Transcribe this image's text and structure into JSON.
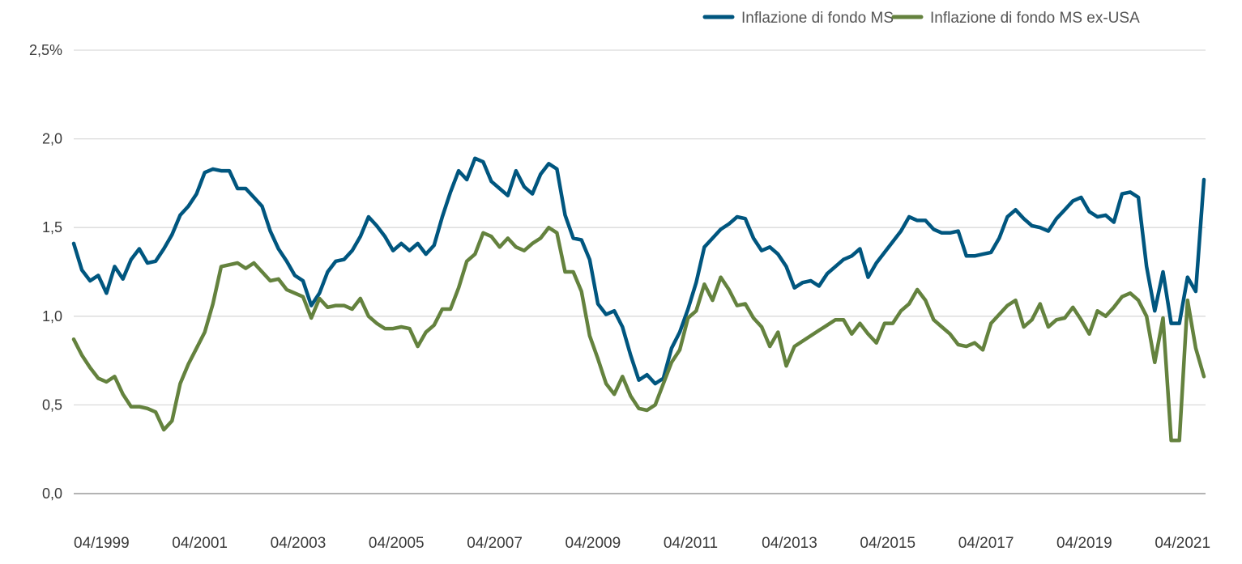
{
  "chart_data": {
    "type": "line",
    "title": "",
    "xlabel": "",
    "ylabel": "",
    "ylim": [
      0,
      2.5
    ],
    "y_ticks": [
      "0,0",
      "0,5",
      "1,0",
      "1,5",
      "2,0",
      "2,5%"
    ],
    "y_tick_values": [
      0,
      0.5,
      1.0,
      1.5,
      2.0,
      2.5
    ],
    "x_ticks": [
      "04/1999",
      "04/2001",
      "04/2003",
      "04/2005",
      "04/2007",
      "04/2009",
      "04/2011",
      "04/2013",
      "04/2015",
      "04/2017",
      "04/2019",
      "04/2021"
    ],
    "x_tick_values": [
      "1999-04",
      "2001-04",
      "2003-04",
      "2005-04",
      "2007-04",
      "2009-04",
      "2011-04",
      "2013-04",
      "2015-04",
      "2017-04",
      "2019-04",
      "2021-04"
    ],
    "grid": "horizontal",
    "legend_position": "top-right",
    "x": [
      "1999-04",
      "1999-06",
      "1999-08",
      "1999-10",
      "1999-12",
      "2000-02",
      "2000-04",
      "2000-06",
      "2000-08",
      "2000-10",
      "2000-12",
      "2001-02",
      "2001-04",
      "2001-06",
      "2001-08",
      "2001-10",
      "2001-12",
      "2002-02",
      "2002-04",
      "2002-06",
      "2002-08",
      "2002-10",
      "2002-12",
      "2003-02",
      "2003-04",
      "2003-06",
      "2003-08",
      "2003-10",
      "2003-12",
      "2004-02",
      "2004-04",
      "2004-06",
      "2004-08",
      "2004-10",
      "2004-12",
      "2005-02",
      "2005-04",
      "2005-06",
      "2005-08",
      "2005-10",
      "2005-12",
      "2006-02",
      "2006-04",
      "2006-06",
      "2006-08",
      "2006-10",
      "2006-12",
      "2007-02",
      "2007-04",
      "2007-06",
      "2007-08",
      "2007-10",
      "2007-12",
      "2008-02",
      "2008-04",
      "2008-06",
      "2008-08",
      "2008-10",
      "2008-12",
      "2009-02",
      "2009-04",
      "2009-06",
      "2009-08",
      "2009-10",
      "2009-12",
      "2010-02",
      "2010-04",
      "2010-06",
      "2010-08",
      "2010-10",
      "2010-12",
      "2011-02",
      "2011-04",
      "2011-06",
      "2011-08",
      "2011-10",
      "2011-12",
      "2012-02",
      "2012-04",
      "2012-06",
      "2012-08",
      "2012-10",
      "2012-12",
      "2013-02",
      "2013-04",
      "2013-06",
      "2013-08",
      "2013-10",
      "2013-12",
      "2014-02",
      "2014-04",
      "2014-06",
      "2014-08",
      "2014-10",
      "2014-12",
      "2015-02",
      "2015-04",
      "2015-06",
      "2015-08",
      "2015-10",
      "2015-12",
      "2016-02",
      "2016-04",
      "2016-06",
      "2016-08",
      "2016-10",
      "2016-12",
      "2017-02",
      "2017-04",
      "2017-06",
      "2017-08",
      "2017-10",
      "2017-12",
      "2018-02",
      "2018-04",
      "2018-06",
      "2018-08",
      "2018-10",
      "2018-12",
      "2019-02",
      "2019-04",
      "2019-06",
      "2019-08",
      "2019-10",
      "2019-12",
      "2020-02",
      "2020-04",
      "2020-06",
      "2020-08",
      "2020-10",
      "2020-12",
      "2021-02",
      "2021-04",
      "2021-06",
      "2021-08",
      "2021-10",
      "2021-12",
      "2022-02",
      "2022-04"
    ],
    "series": [
      {
        "name": "Inflazione di fondo MS",
        "color": "#00567f",
        "values": [
          1.41,
          1.26,
          1.2,
          1.23,
          1.13,
          1.28,
          1.21,
          1.32,
          1.38,
          1.3,
          1.31,
          1.38,
          1.46,
          1.57,
          1.62,
          1.69,
          1.81,
          1.83,
          1.82,
          1.82,
          1.72,
          1.72,
          1.67,
          1.62,
          1.48,
          1.38,
          1.31,
          1.23,
          1.2,
          1.06,
          1.13,
          1.25,
          1.31,
          1.32,
          1.37,
          1.45,
          1.56,
          1.51,
          1.45,
          1.37,
          1.41,
          1.37,
          1.41,
          1.35,
          1.4,
          1.56,
          1.7,
          1.82,
          1.77,
          1.89,
          1.87,
          1.76,
          1.72,
          1.68,
          1.82,
          1.73,
          1.69,
          1.8,
          1.86,
          1.83,
          1.57,
          1.44,
          1.43,
          1.32,
          1.07,
          1.01,
          1.03,
          0.94,
          0.78,
          0.64,
          0.67,
          0.62,
          0.65,
          0.82,
          0.91,
          1.04,
          1.19,
          1.39,
          1.44,
          1.49,
          1.52,
          1.56,
          1.55,
          1.44,
          1.37,
          1.39,
          1.35,
          1.28,
          1.16,
          1.19,
          1.2,
          1.17,
          1.24,
          1.28,
          1.32,
          1.34,
          1.38,
          1.22,
          1.3,
          1.36,
          1.42,
          1.48,
          1.56,
          1.54,
          1.54,
          1.49,
          1.47,
          1.47,
          1.48,
          1.34,
          1.34,
          1.35,
          1.36,
          1.44,
          1.56,
          1.6,
          1.55,
          1.51,
          1.5,
          1.48,
          1.55,
          1.6,
          1.65,
          1.67,
          1.59,
          1.56,
          1.57,
          1.53,
          1.69,
          1.7,
          1.67,
          1.28,
          1.03,
          1.25,
          0.96,
          0.96,
          1.22,
          1.14,
          1.77
        ]
      },
      {
        "name": "Inflazione di fondo MS ex-USA",
        "color": "#64823e",
        "values": [
          0.87,
          0.78,
          0.71,
          0.65,
          0.63,
          0.66,
          0.56,
          0.49,
          0.49,
          0.48,
          0.46,
          0.36,
          0.41,
          0.62,
          0.73,
          0.82,
          0.91,
          1.07,
          1.28,
          1.29,
          1.3,
          1.27,
          1.3,
          1.25,
          1.2,
          1.21,
          1.15,
          1.13,
          1.11,
          0.99,
          1.1,
          1.05,
          1.06,
          1.06,
          1.04,
          1.1,
          1.0,
          0.96,
          0.93,
          0.93,
          0.94,
          0.93,
          0.83,
          0.91,
          0.95,
          1.04,
          1.04,
          1.16,
          1.31,
          1.35,
          1.47,
          1.45,
          1.39,
          1.44,
          1.39,
          1.37,
          1.41,
          1.44,
          1.5,
          1.47,
          1.25,
          1.25,
          1.14,
          0.89,
          0.76,
          0.62,
          0.56,
          0.66,
          0.55,
          0.48,
          0.47,
          0.5,
          0.62,
          0.74,
          0.81,
          0.99,
          1.03,
          1.18,
          1.09,
          1.22,
          1.15,
          1.06,
          1.07,
          0.99,
          0.94,
          0.83,
          0.91,
          0.72,
          0.83,
          0.86,
          0.89,
          0.92,
          0.95,
          0.98,
          0.98,
          0.9,
          0.96,
          0.9,
          0.85,
          0.96,
          0.96,
          1.03,
          1.07,
          1.15,
          1.09,
          0.98,
          0.94,
          0.9,
          0.84,
          0.83,
          0.85,
          0.81,
          0.96,
          1.01,
          1.06,
          1.09,
          0.94,
          0.98,
          1.07,
          0.94,
          0.98,
          0.99,
          1.05,
          0.98,
          0.9,
          1.03,
          1.0,
          1.05,
          1.11,
          1.13,
          1.09,
          1.0,
          0.74,
          0.99,
          0.3,
          0.3,
          1.09,
          0.82,
          0.66
        ]
      }
    ]
  }
}
